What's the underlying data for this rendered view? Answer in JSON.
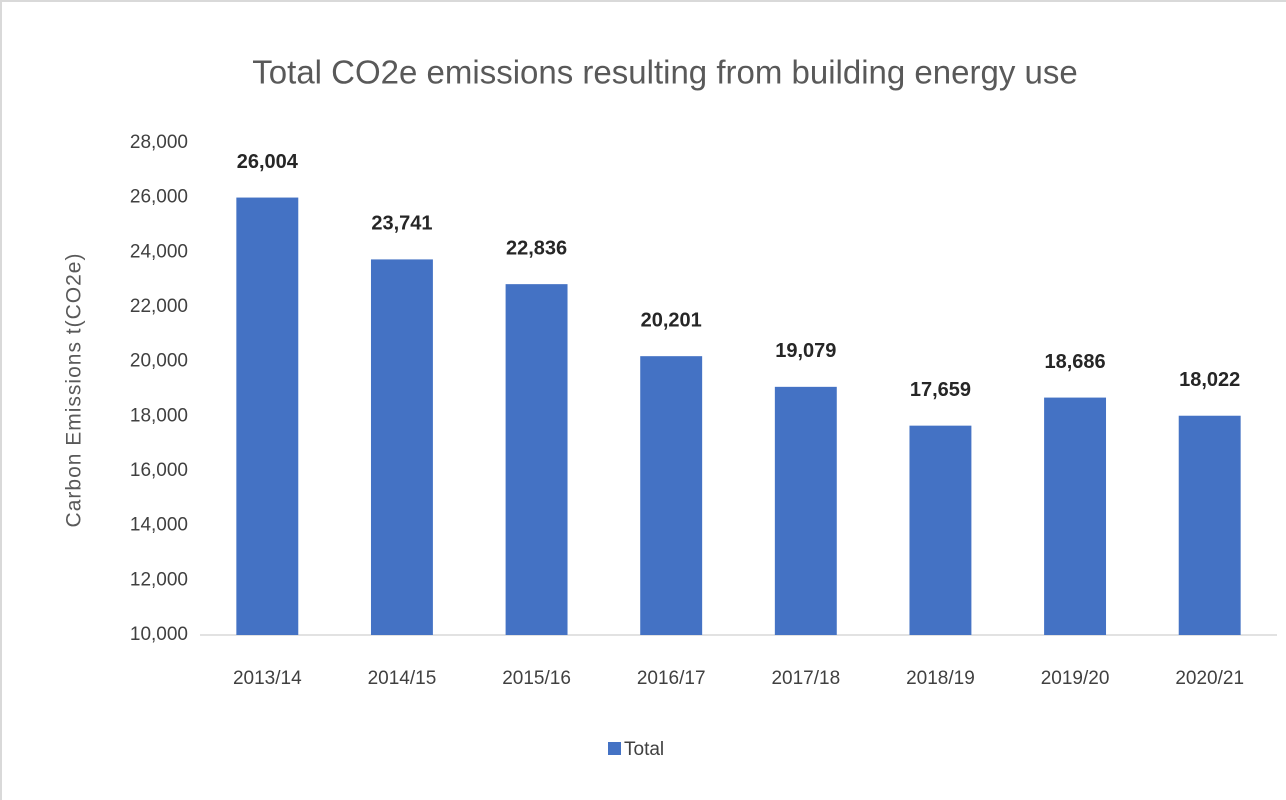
{
  "chart_data": {
    "type": "bar",
    "title": "Total CO2e emissions resulting from building energy use",
    "y_label": "Carbon Emissions t(CO2e)",
    "categories": [
      "2013/14",
      "2014/15",
      "2015/16",
      "2016/17",
      "2017/18",
      "2018/19",
      "2019/20",
      "2020/21"
    ],
    "series": [
      {
        "name": "Total",
        "color": "#4472c4",
        "values": [
          26004,
          23741,
          22836,
          20201,
          19079,
          17659,
          18686,
          18022
        ],
        "value_labels": [
          "26,004",
          "23,741",
          "22,836",
          "20,201",
          "19,079",
          "17,659",
          "18,686",
          "18,022"
        ]
      }
    ],
    "ylim": [
      10000,
      28000
    ],
    "yticks": [
      {
        "value": 10000,
        "label": "10,000"
      },
      {
        "value": 12000,
        "label": "12,000"
      },
      {
        "value": 14000,
        "label": "14,000"
      },
      {
        "value": 16000,
        "label": "16,000"
      },
      {
        "value": 18000,
        "label": "18,000"
      },
      {
        "value": 20000,
        "label": "20,000"
      },
      {
        "value": 22000,
        "label": "22,000"
      },
      {
        "value": 24000,
        "label": "24,000"
      },
      {
        "value": 26000,
        "label": "26,000"
      },
      {
        "value": 28000,
        "label": "28,000"
      }
    ],
    "grid": false,
    "legend": "bottom"
  }
}
